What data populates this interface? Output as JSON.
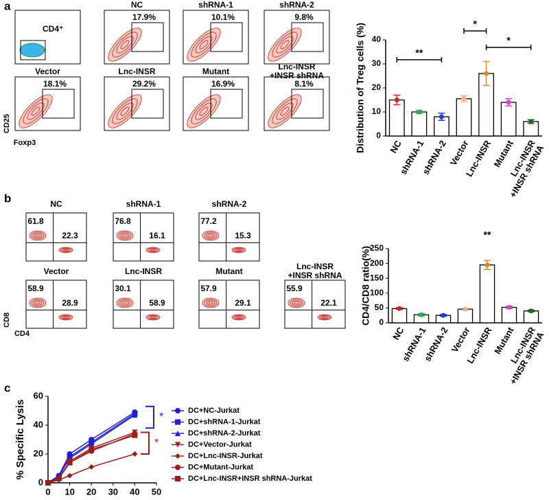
{
  "panel_labels": [
    "a",
    "b",
    "c"
  ],
  "flow_a": {
    "y_label": "CD25",
    "x_label": "Foxp3",
    "gate_label": "CD4⁺",
    "plots": [
      {
        "title": "NC",
        "value": "17.9%"
      },
      {
        "title": "shRNA-1",
        "value": "10.1%"
      },
      {
        "title": "shRNA-2",
        "value": "9.8%"
      },
      {
        "title": "Vector",
        "value": "18.1%"
      },
      {
        "title": "Lnc-INSR",
        "value": "29.2%"
      },
      {
        "title": "Mutant",
        "value": "16.9%"
      },
      {
        "title": "Lnc-INSR\n+INSR shRNA",
        "value": "8.1%"
      }
    ]
  },
  "flow_b": {
    "y_label": "CD8",
    "x_label": "CD4",
    "plots": [
      {
        "title": "NC",
        "upper_left": "61.8",
        "lower_right": "22.3"
      },
      {
        "title": "shRNA-1",
        "upper_left": "76.8",
        "lower_right": "16.1"
      },
      {
        "title": "shRNA-2",
        "upper_left": "77.2",
        "lower_right": "15.3"
      },
      {
        "title": "Vector",
        "upper_left": "58.9",
        "lower_right": "28.9"
      },
      {
        "title": "Lnc-INSR",
        "upper_left": "30.1",
        "lower_right": "58.9"
      },
      {
        "title": "Mutant",
        "upper_left": "57.9",
        "lower_right": "29.1"
      },
      {
        "title": "Lnc-INSR\n+INSR shRNA",
        "upper_left": "55.9",
        "lower_right": "22.1"
      }
    ]
  },
  "chart_data": [
    {
      "type": "bar",
      "y_label": "Distribution of Treg cells (%)",
      "categories": [
        "NC",
        "shRNA-1",
        "shRNA-2",
        "Vector",
        "Lnc-INSR",
        "Mutant",
        "Lnc-INSR\n+INSR shRNA"
      ],
      "values": [
        15,
        10,
        8,
        15.5,
        26,
        14,
        6
      ],
      "errors": [
        2,
        0.7,
        1.5,
        1.2,
        5,
        1.5,
        0.8
      ],
      "colors": [
        "#e02020",
        "#22b14c",
        "#1f3fd6",
        "#f4b183",
        "#e08a1e",
        "#e040d0",
        "#1a6b2a"
      ],
      "ylim": [
        0,
        40
      ],
      "yticks": [
        0,
        10,
        20,
        30,
        40
      ],
      "annotations": [
        "**",
        "*",
        "*"
      ]
    },
    {
      "type": "bar",
      "y_label": "CD4/CD8 ratio(%)",
      "categories": [
        "NC",
        "shRNA-1",
        "shRNA-2",
        "Vector",
        "Lnc-INSR",
        "Mutant",
        "Lnc-INSR\n+INSR shRNA"
      ],
      "values": [
        48,
        27,
        25,
        46,
        195,
        52,
        40
      ],
      "errors": [
        3,
        4,
        3,
        3,
        15,
        4,
        3
      ],
      "colors": [
        "#e02020",
        "#22b14c",
        "#1f3fd6",
        "#f4b183",
        "#e08a1e",
        "#e040d0",
        "#1a6b2a"
      ],
      "ylim": [
        0,
        250
      ],
      "yticks": [
        0,
        50,
        100,
        150,
        200,
        250
      ],
      "annotations": [
        "**"
      ]
    },
    {
      "type": "line",
      "y_label": "% Specific Lysis",
      "x": [
        0,
        5,
        10,
        20,
        40
      ],
      "xlim": [
        0,
        50
      ],
      "xticks": [
        0,
        10,
        20,
        30,
        40,
        50
      ],
      "ylim": [
        0,
        60
      ],
      "yticks": [
        0,
        20,
        40,
        60
      ],
      "annotations": [
        "*",
        "*"
      ],
      "series": [
        {
          "name": "DC+NC-Jurkat",
          "color": "#1f1fd6",
          "marker": "circle",
          "values": [
            0,
            5,
            20,
            30,
            49
          ]
        },
        {
          "name": "DC+shRNA-1-Jurkat",
          "color": "#1f1fd6",
          "marker": "square",
          "values": [
            0,
            4,
            18,
            28,
            48
          ]
        },
        {
          "name": "DC+shRNA-2-Jurkat",
          "color": "#1f1fd6",
          "marker": "triangle",
          "values": [
            0,
            5,
            17,
            27,
            47
          ]
        },
        {
          "name": "DC+Vector-Jurkat",
          "color": "#a01c1c",
          "marker": "triangle-down",
          "values": [
            0,
            3,
            15,
            24,
            35
          ]
        },
        {
          "name": "DC+Lnc-INSR-Jurkat",
          "color": "#a01c1c",
          "marker": "diamond",
          "values": [
            0,
            2,
            5,
            11,
            20
          ]
        },
        {
          "name": "DC+Mutant-Jurkat",
          "color": "#a01c1c",
          "marker": "circle",
          "values": [
            0,
            3,
            14,
            22,
            34
          ]
        },
        {
          "name": "DC+Lnc-INSR+INSR shRNA-Jurkat",
          "color": "#a01c1c",
          "marker": "square",
          "values": [
            0,
            3,
            14,
            23,
            33
          ]
        }
      ]
    }
  ]
}
